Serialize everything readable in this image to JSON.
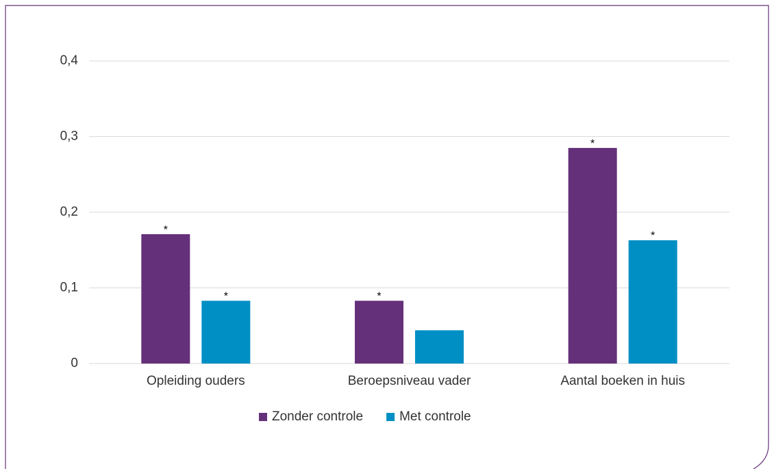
{
  "chart_data": {
    "type": "bar",
    "categories": [
      "Opleiding ouders",
      "Beroepsniveau vader",
      "Aantal boeken in huis"
    ],
    "series": [
      {
        "name": "Zonder controle",
        "color": "#65307a",
        "values": [
          0.171,
          0.083,
          0.285
        ],
        "markers": [
          "*",
          "*",
          "*"
        ]
      },
      {
        "name": "Met controle",
        "color": "#008fc4",
        "values": [
          0.083,
          0.044,
          0.163
        ],
        "markers": [
          "*",
          null,
          "*"
        ]
      }
    ],
    "ylim": [
      0,
      0.4
    ],
    "yticks": [
      0,
      {
        "value": 0.1,
        "label": "0,1"
      },
      {
        "value": 0.2,
        "label": "0,2"
      },
      {
        "value": 0.3,
        "label": "0,3"
      },
      {
        "value": 0.4,
        "label": "0,4"
      }
    ],
    "grid": true,
    "legend": "bottom"
  }
}
